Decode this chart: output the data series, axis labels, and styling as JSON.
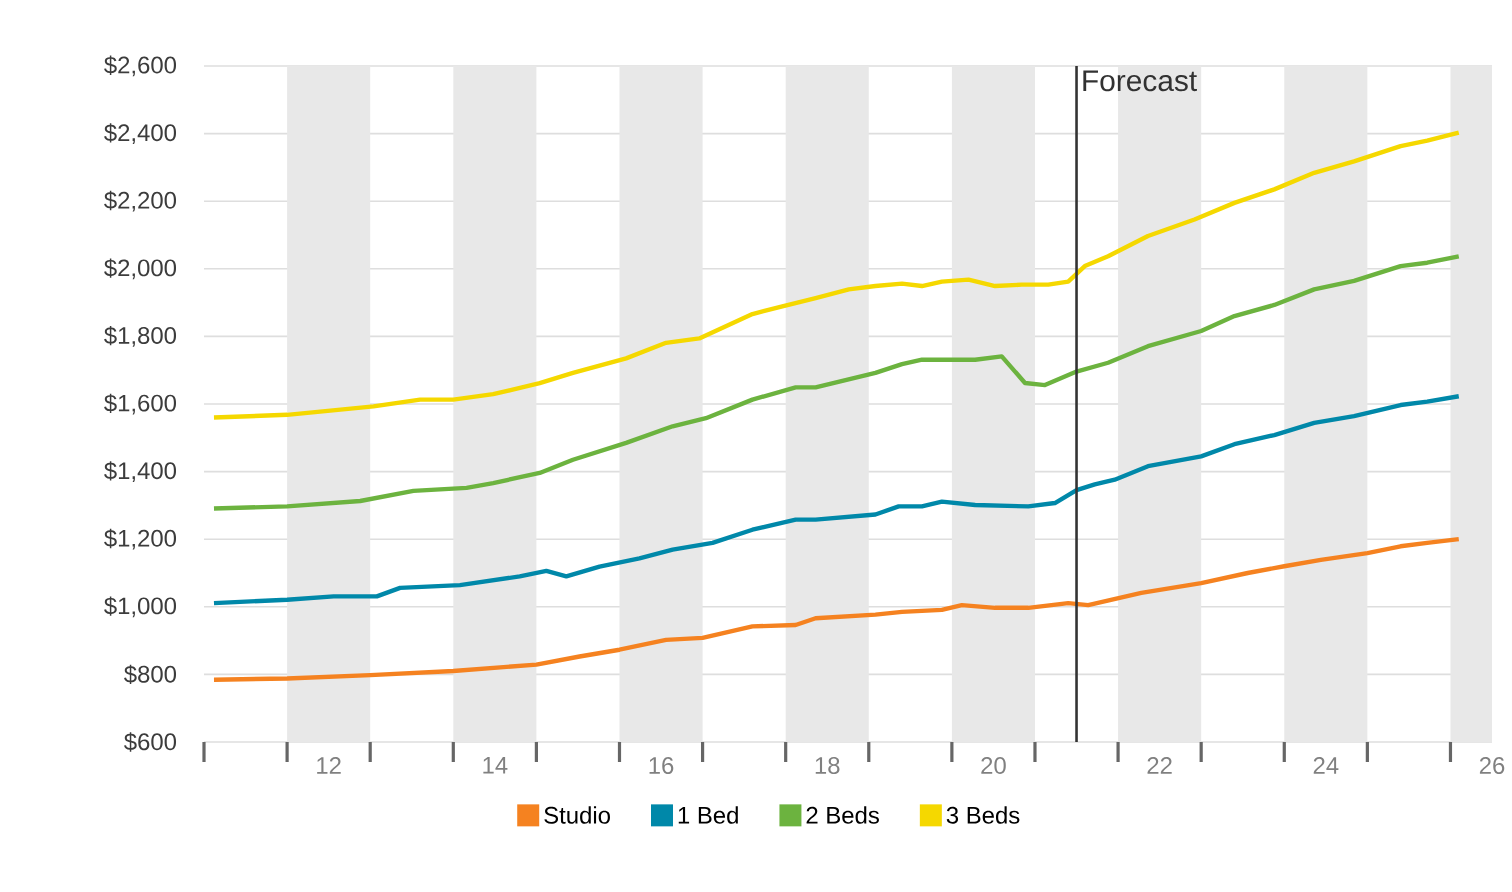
{
  "chart_data": {
    "type": "line",
    "xlim": [
      10.5,
      26
    ],
    "ylim": [
      600,
      2600
    ],
    "xticks": [
      {
        "value": 10.5,
        "label": null
      },
      {
        "value": 11.5,
        "label": null
      },
      {
        "value": 12.5,
        "label": null
      },
      {
        "value": 13.5,
        "label": null
      },
      {
        "value": 14.5,
        "label": null
      },
      {
        "value": 15.5,
        "label": null
      },
      {
        "value": 16.5,
        "label": null
      },
      {
        "value": 17.5,
        "label": null
      },
      {
        "value": 18.5,
        "label": null
      },
      {
        "value": 19.5,
        "label": null
      },
      {
        "value": 20.5,
        "label": null
      },
      {
        "value": 21.5,
        "label": null
      },
      {
        "value": 22.5,
        "label": null
      },
      {
        "value": 23.5,
        "label": null
      },
      {
        "value": 24.5,
        "label": null
      },
      {
        "value": 25.5,
        "label": null
      },
      12,
      14,
      16,
      18,
      20,
      22,
      24,
      26
    ],
    "yticks": [
      {
        "value": 600,
        "label": "$600"
      },
      {
        "value": 800,
        "label": "$800"
      },
      {
        "value": 1000,
        "label": "$1,000"
      },
      {
        "value": 1200,
        "label": "$1,200"
      },
      {
        "value": 1400,
        "label": "$1,400"
      },
      {
        "value": 1600,
        "label": "$1,600"
      },
      {
        "value": 1800,
        "label": "$1,800"
      },
      {
        "value": 2000,
        "label": "$2,000"
      },
      {
        "value": 2200,
        "label": "$2,200"
      },
      {
        "value": 2400,
        "label": "$2,400"
      },
      {
        "value": 2600,
        "label": "$2,600"
      }
    ],
    "grid": "y",
    "legend": "bottom",
    "bands": [
      {
        "axis": "x",
        "from": 11.5,
        "to": 12.5,
        "color": "#e8e8e8"
      },
      {
        "axis": "x",
        "from": 13.5,
        "to": 14.5,
        "color": "#e8e8e8"
      },
      {
        "axis": "x",
        "from": 15.5,
        "to": 16.5,
        "color": "#e8e8e8"
      },
      {
        "axis": "x",
        "from": 17.5,
        "to": 18.5,
        "color": "#e8e8e8"
      },
      {
        "axis": "x",
        "from": 19.5,
        "to": 20.5,
        "color": "#e8e8e8"
      },
      {
        "axis": "x",
        "from": 21.5,
        "to": 22.5,
        "color": "#e8e8e8"
      },
      {
        "axis": "x",
        "from": 23.5,
        "to": 24.5,
        "color": "#e8e8e8"
      },
      {
        "axis": "x",
        "from": 25.5,
        "to": 26,
        "color": "#e8e8e8"
      }
    ],
    "ref_lines": [
      {
        "axis": "x",
        "value": 21,
        "label": "Forecast",
        "color": "#333333"
      }
    ],
    "series": [
      {
        "name": "Studio",
        "color": "#f58220",
        "x": [
          10.62,
          11.5,
          12.5,
          13.5,
          14.5,
          15.02,
          15.5,
          16.06,
          16.5,
          17.1,
          17.62,
          17.86,
          18.58,
          18.9,
          19.38,
          19.62,
          20.02,
          20.42,
          20.9,
          21.14,
          21.78,
          22.5,
          23.06,
          23.5,
          23.94,
          24.5,
          24.9,
          25.22,
          25.6
        ],
        "values": [
          784,
          788,
          798,
          810,
          829,
          853,
          873,
          902,
          908,
          942,
          946,
          966,
          977,
          985,
          991,
          1005,
          997,
          997,
          1011,
          1005,
          1041,
          1070,
          1100,
          1120,
          1139,
          1159,
          1179,
          1189,
          1200
        ]
      },
      {
        "name": "1 Bed",
        "color": "#0088a9",
        "x": [
          10.62,
          11.5,
          12.06,
          12.58,
          12.86,
          13.58,
          14.3,
          14.62,
          14.86,
          15.26,
          15.74,
          16.14,
          16.62,
          17.1,
          17.62,
          17.86,
          18.58,
          18.86,
          19.14,
          19.38,
          19.78,
          20.42,
          20.74,
          21.0,
          21.22,
          21.46,
          21.86,
          22.5,
          22.9,
          23.38,
          23.86,
          24.34,
          24.9,
          25.22,
          25.6
        ],
        "values": [
          1011,
          1021,
          1031,
          1031,
          1056,
          1064,
          1090,
          1106,
          1090,
          1119,
          1143,
          1169,
          1189,
          1228,
          1258,
          1258,
          1273,
          1297,
          1297,
          1311,
          1301,
          1297,
          1307,
          1345,
          1362,
          1376,
          1416,
          1445,
          1481,
          1508,
          1544,
          1564,
          1597,
          1607,
          1623
        ]
      },
      {
        "name": "2 Beds",
        "color": "#6cb33f",
        "x": [
          10.62,
          11.5,
          12.38,
          13.02,
          13.66,
          13.98,
          14.54,
          14.94,
          15.58,
          16.14,
          16.54,
          17.1,
          17.62,
          17.86,
          18.58,
          18.9,
          19.14,
          19.78,
          20.1,
          20.38,
          20.62,
          21.0,
          21.38,
          21.86,
          22.5,
          22.9,
          23.38,
          23.86,
          24.34,
          24.9,
          25.22,
          25.6
        ],
        "values": [
          1291,
          1297,
          1313,
          1343,
          1352,
          1366,
          1396,
          1435,
          1485,
          1534,
          1558,
          1613,
          1649,
          1649,
          1692,
          1718,
          1731,
          1731,
          1741,
          1662,
          1656,
          1696,
          1722,
          1771,
          1816,
          1860,
          1893,
          1939,
          1964,
          2008,
          2018,
          2037
        ]
      },
      {
        "name": "3 Beds",
        "color": "#f5d800",
        "x": [
          10.62,
          11.5,
          12.54,
          13.1,
          13.5,
          13.98,
          14.54,
          14.94,
          15.58,
          16.06,
          16.46,
          17.1,
          17.46,
          17.86,
          18.26,
          18.58,
          18.9,
          19.14,
          19.38,
          19.7,
          20.02,
          20.34,
          20.66,
          20.9,
          21.1,
          21.38,
          21.86,
          22.42,
          22.9,
          23.38,
          23.86,
          24.34,
          24.9,
          25.22,
          25.6
        ],
        "values": [
          1560,
          1568,
          1593,
          1613,
          1613,
          1629,
          1662,
          1692,
          1735,
          1781,
          1794,
          1866,
          1889,
          1913,
          1939,
          1949,
          1956,
          1949,
          1962,
          1968,
          1949,
          1953,
          1953,
          1962,
          2008,
          2037,
          2097,
          2146,
          2195,
          2235,
          2284,
          2318,
          2363,
          2379,
          2403
        ]
      }
    ]
  }
}
